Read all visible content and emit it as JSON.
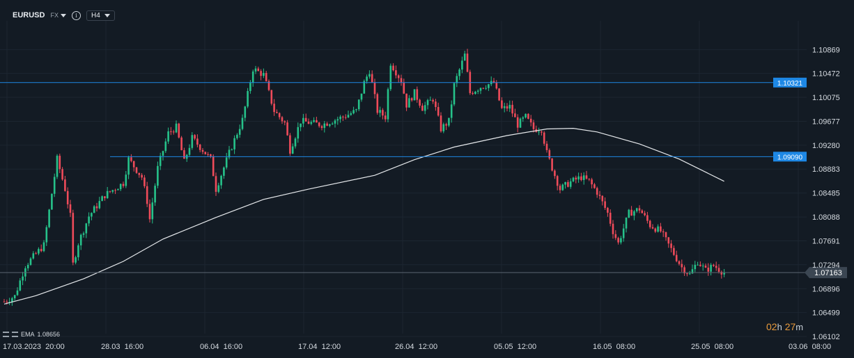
{
  "toolbar": {
    "symbol": "EURUSD",
    "market": "FX",
    "info_icon": "info-icon",
    "timeframe": "H4"
  },
  "ema_legend": {
    "label": "EMA",
    "value": "1.08656"
  },
  "countdown": {
    "hours": "02",
    "hours_unit": "h",
    "minutes": "27",
    "minutes_unit": "m"
  },
  "colors": {
    "background": "#131b24",
    "up_candle": "#26c28a",
    "down_candle": "#ef4b5a",
    "ema_line": "#e6e9ec",
    "level_line": "#1e88e5",
    "current_price_tag": "#3b4652"
  },
  "chart_data": {
    "type": "candlestick",
    "symbol": "EURUSD",
    "timeframe": "H4",
    "ylim": [
      1.06102,
      1.11069
    ],
    "y_ticks": [
      "1.10869",
      "1.10472",
      "1.10075",
      "1.09677",
      "1.09280",
      "1.08883",
      "1.08485",
      "1.08088",
      "1.07691",
      "1.07294",
      "1.06896",
      "1.06499",
      "1.06102"
    ],
    "x_ticks": [
      "17.03.2023  20:00",
      "28.03  16:00",
      "06.04  16:00",
      "17.04  12:00",
      "26.04  12:00",
      "05.05  12:00",
      "16.05  08:00",
      "25.05  08:00",
      "03.06  08:00"
    ],
    "price_levels": [
      {
        "label": "1.10321",
        "value": 1.10321,
        "color": "#1e88e5"
      },
      {
        "label": "1.09090",
        "value": 1.0909,
        "color": "#1e88e5"
      }
    ],
    "current_price": {
      "label": "1.07163",
      "value": 1.07163
    },
    "ema": {
      "name": "EMA",
      "value": 1.08656,
      "anchors": [
        [
          0,
          1.0664
        ],
        [
          12,
          1.0678
        ],
        [
          30,
          1.0706
        ],
        [
          45,
          1.0735
        ],
        [
          60,
          1.0772
        ],
        [
          80,
          1.0808
        ],
        [
          98,
          1.0838
        ],
        [
          115,
          1.0855
        ],
        [
          140,
          1.0878
        ],
        [
          155,
          1.0904
        ],
        [
          170,
          1.0925
        ],
        [
          190,
          1.0944
        ],
        [
          205,
          1.0955
        ],
        [
          215,
          1.0956
        ],
        [
          224,
          1.095
        ],
        [
          240,
          1.093
        ],
        [
          255,
          1.0905
        ],
        [
          272,
          1.0868
        ]
      ]
    },
    "candles_note": "Synthesized H4 OHLC path following the visible price action",
    "price_path": [
      [
        0,
        1.0668
      ],
      [
        4,
        1.0677
      ],
      [
        8,
        1.0728
      ],
      [
        15,
        1.0762
      ],
      [
        20,
        1.0905
      ],
      [
        23,
        1.0855
      ],
      [
        25,
        1.081
      ],
      [
        26,
        1.073
      ],
      [
        28,
        1.0765
      ],
      [
        32,
        1.081
      ],
      [
        38,
        1.0845
      ],
      [
        45,
        1.0865
      ],
      [
        47,
        1.0905
      ],
      [
        52,
        1.0875
      ],
      [
        54,
        1.0835
      ],
      [
        55,
        1.0805
      ],
      [
        58,
        1.089
      ],
      [
        62,
        1.0948
      ],
      [
        65,
        1.0958
      ],
      [
        68,
        1.09
      ],
      [
        71,
        1.094
      ],
      [
        78,
        1.0905
      ],
      [
        80,
        1.0855
      ],
      [
        85,
        1.0915
      ],
      [
        90,
        1.097
      ],
      [
        94,
        1.1055
      ],
      [
        98,
        1.1045
      ],
      [
        102,
        1.0985
      ],
      [
        106,
        1.0965
      ],
      [
        108,
        1.092
      ],
      [
        112,
        1.0968
      ],
      [
        120,
        1.0962
      ],
      [
        128,
        1.0975
      ],
      [
        133,
        1.0985
      ],
      [
        136,
        1.1032
      ],
      [
        138,
        1.1052
      ],
      [
        141,
        1.0985
      ],
      [
        144,
        1.0975
      ],
      [
        146,
        1.1065
      ],
      [
        150,
        1.1035
      ],
      [
        152,
        1.0995
      ],
      [
        155,
        1.1015
      ],
      [
        158,
        1.099
      ],
      [
        162,
        1.1005
      ],
      [
        165,
        1.0955
      ],
      [
        168,
        1.0968
      ],
      [
        170,
        1.1028
      ],
      [
        174,
        1.1078
      ],
      [
        176,
        1.1015
      ],
      [
        180,
        1.1025
      ],
      [
        185,
        1.1032
      ],
      [
        188,
        1.0988
      ],
      [
        191,
        1.0992
      ],
      [
        194,
        1.0962
      ],
      [
        197,
        1.0975
      ],
      [
        200,
        1.0955
      ],
      [
        203,
        1.0955
      ],
      [
        205,
        1.0915
      ],
      [
        208,
        1.0878
      ],
      [
        210,
        1.0855
      ],
      [
        214,
        1.0867
      ],
      [
        218,
        1.0875
      ],
      [
        221,
        1.0868
      ],
      [
        224,
        1.085
      ],
      [
        228,
        1.0815
      ],
      [
        230,
        1.0785
      ],
      [
        232,
        1.0765
      ],
      [
        236,
        1.0815
      ],
      [
        240,
        1.0822
      ],
      [
        244,
        1.0795
      ],
      [
        248,
        1.0785
      ],
      [
        252,
        1.0755
      ],
      [
        256,
        1.0725
      ],
      [
        259,
        1.0713
      ],
      [
        262,
        1.0735
      ],
      [
        265,
        1.072
      ],
      [
        268,
        1.0728
      ],
      [
        272,
        1.0716
      ]
    ]
  }
}
